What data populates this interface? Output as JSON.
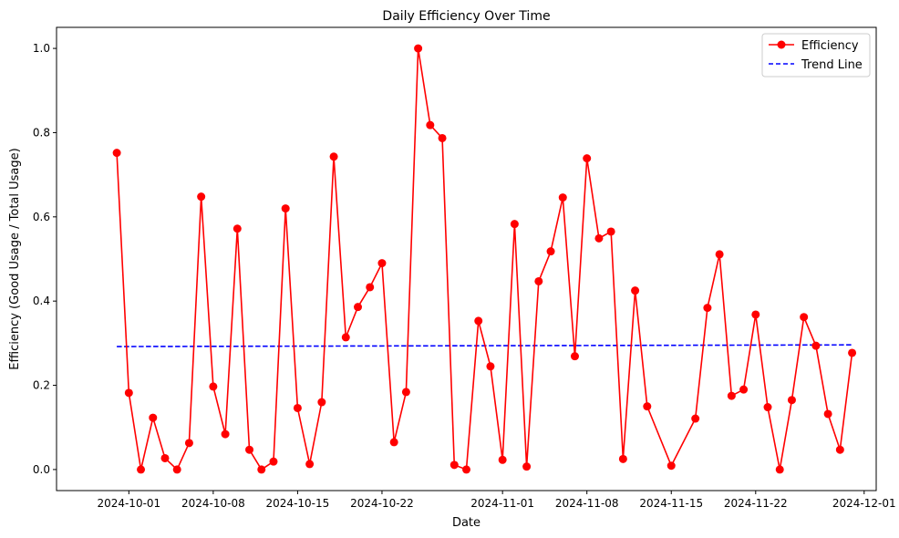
{
  "chart_data": {
    "type": "line",
    "title": "Daily Efficiency Over Time",
    "xlabel": "Date",
    "ylabel": "Efficiency (Good Usage / Total Usage)",
    "x_range": [
      "2024-09-25",
      "2024-12-02"
    ],
    "ylim": [
      -0.05,
      1.05
    ],
    "x_ticks": [
      "2024-10-01",
      "2024-10-08",
      "2024-10-15",
      "2024-10-22",
      "2024-11-01",
      "2024-11-08",
      "2024-11-15",
      "2024-11-22",
      "2024-12-01"
    ],
    "y_ticks": [
      "0.0",
      "0.2",
      "0.4",
      "0.6",
      "0.8",
      "1.0"
    ],
    "grid": false,
    "legend_position": "top-right",
    "colors": {
      "efficiency": "#ff0000",
      "trend": "#0000ff"
    },
    "series": [
      {
        "name": "Efficiency",
        "style": "line-marker",
        "x": [
          "2024-09-30",
          "2024-10-01",
          "2024-10-02",
          "2024-10-03",
          "2024-10-04",
          "2024-10-05",
          "2024-10-06",
          "2024-10-07",
          "2024-10-08",
          "2024-10-09",
          "2024-10-10",
          "2024-10-11",
          "2024-10-12",
          "2024-10-13",
          "2024-10-14",
          "2024-10-15",
          "2024-10-16",
          "2024-10-17",
          "2024-10-18",
          "2024-10-19",
          "2024-10-20",
          "2024-10-21",
          "2024-10-22",
          "2024-10-23",
          "2024-10-24",
          "2024-10-25",
          "2024-10-26",
          "2024-10-27",
          "2024-10-28",
          "2024-10-29",
          "2024-10-30",
          "2024-10-31",
          "2024-11-01",
          "2024-11-02",
          "2024-11-03",
          "2024-11-04",
          "2024-11-05",
          "2024-11-06",
          "2024-11-07",
          "2024-11-08",
          "2024-11-09",
          "2024-11-10",
          "2024-11-11",
          "2024-11-12",
          "2024-11-13",
          "2024-11-15",
          "2024-11-17",
          "2024-11-18",
          "2024-11-19",
          "2024-11-20",
          "2024-11-21",
          "2024-11-22",
          "2024-11-23",
          "2024-11-24",
          "2024-11-25",
          "2024-11-26",
          "2024-11-27",
          "2024-11-28",
          "2024-11-29",
          "2024-11-30"
        ],
        "y": [
          0.752,
          0.182,
          0.0,
          0.123,
          0.027,
          0.0,
          0.063,
          0.648,
          0.197,
          0.084,
          0.572,
          0.047,
          0.0,
          0.019,
          0.62,
          0.146,
          0.013,
          0.16,
          0.743,
          0.314,
          0.386,
          0.433,
          0.49,
          0.065,
          0.184,
          1.0,
          0.818,
          0.787,
          0.011,
          0.0,
          0.353,
          0.245,
          0.023,
          0.583,
          0.007,
          0.447,
          0.518,
          0.646,
          0.269,
          0.739,
          0.549,
          0.565,
          0.025,
          0.425,
          0.15,
          0.009,
          0.121,
          0.384,
          0.511,
          0.175,
          0.19,
          0.368,
          0.148,
          0.0,
          0.165,
          0.362,
          0.294,
          0.132,
          0.047,
          0.277
        ]
      },
      {
        "name": "Trend Line",
        "style": "dashed",
        "x": [
          "2024-09-30",
          "2024-11-30"
        ],
        "y": [
          0.292,
          0.296
        ]
      }
    ]
  }
}
